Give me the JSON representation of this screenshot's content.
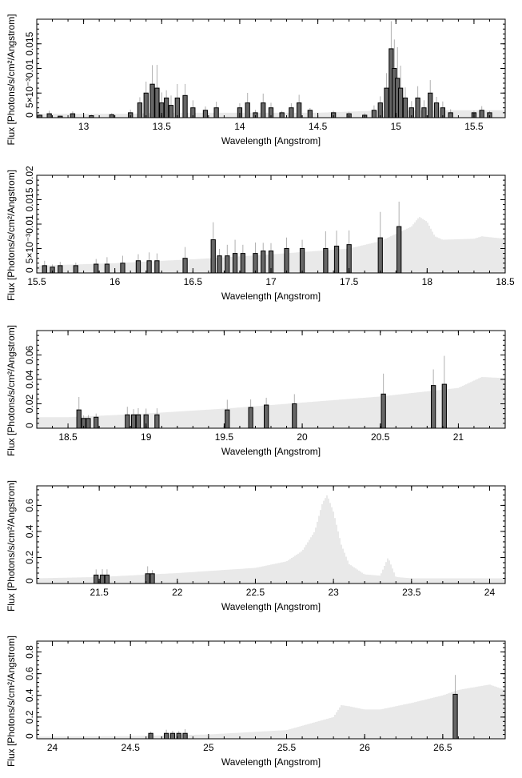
{
  "figure": {
    "colors": {
      "axis": "#000000",
      "errorbar": "#b0b0b0",
      "model": "#c8c8c8",
      "data_step": "#000000",
      "data_fill": "#666666"
    }
  },
  "chart_data": [
    {
      "type": "line",
      "xlabel": "Wavelength [Angstrom]",
      "ylabel": "Flux [Photons/s/cm²/Angstrom]",
      "xlim": [
        12.7,
        15.7
      ],
      "ylim": [
        0,
        0.02
      ],
      "xticks": [
        "13",
        "13.5",
        "14",
        "14.5",
        "15",
        "15.5"
      ],
      "xtick_values": [
        13,
        13.5,
        14,
        14.5,
        15,
        15.5
      ],
      "yticks": [
        "0",
        "5×10⁻³",
        "0.01",
        "0.015"
      ],
      "ytick_values": [
        0,
        0.005,
        0.01,
        0.015
      ],
      "model": {
        "x": [
          12.7,
          13.3,
          13.5,
          14.0,
          14.5,
          14.95,
          15.3,
          15.7
        ],
        "y": [
          0.0008,
          0.0008,
          0.001,
          0.001,
          0.001,
          0.0015,
          0.0015,
          0.0015
        ]
      },
      "data": {
        "x": [
          12.72,
          12.78,
          12.85,
          12.93,
          13.05,
          13.18,
          13.3,
          13.36,
          13.4,
          13.44,
          13.47,
          13.5,
          13.53,
          13.56,
          13.6,
          13.65,
          13.7,
          13.78,
          13.85,
          14.0,
          14.05,
          14.1,
          14.15,
          14.2,
          14.27,
          14.33,
          14.38,
          14.45,
          14.6,
          14.7,
          14.8,
          14.86,
          14.9,
          14.94,
          14.97,
          14.99,
          15.01,
          15.03,
          15.06,
          15.1,
          15.14,
          15.18,
          15.22,
          15.26,
          15.3,
          15.35,
          15.5,
          15.55,
          15.6
        ],
        "y": [
          0.0005,
          0.0008,
          0.0003,
          0.0008,
          0.0004,
          0.0006,
          0.001,
          0.003,
          0.005,
          0.0068,
          0.006,
          0.003,
          0.004,
          0.0025,
          0.004,
          0.0045,
          0.002,
          0.0015,
          0.002,
          0.002,
          0.003,
          0.001,
          0.003,
          0.002,
          0.001,
          0.002,
          0.003,
          0.0015,
          0.001,
          0.0008,
          0.0005,
          0.0015,
          0.003,
          0.006,
          0.014,
          0.01,
          0.008,
          0.006,
          0.004,
          0.002,
          0.004,
          0.002,
          0.005,
          0.003,
          0.002,
          0.001,
          0.001,
          0.0015,
          0.001
        ]
      }
    },
    {
      "type": "line",
      "xlabel": "Wavelength [Angstrom]",
      "ylabel": "Flux [Photons/s/cm²/Angstrom]",
      "xlim": [
        15.5,
        18.5
      ],
      "ylim": [
        0,
        0.02
      ],
      "xticks": [
        "15.5",
        "16",
        "16.5",
        "17",
        "17.5",
        "18",
        "18.5"
      ],
      "xtick_values": [
        15.5,
        16,
        16.5,
        17,
        17.5,
        18,
        18.5
      ],
      "yticks": [
        "0",
        "5×10⁻³",
        "0.01",
        "0.015",
        "0.02"
      ],
      "ytick_values": [
        0,
        0.005,
        0.01,
        0.015,
        0.02
      ],
      "model": {
        "x": [
          15.5,
          16.0,
          16.5,
          17.0,
          17.5,
          17.7,
          17.9,
          17.95,
          18.0,
          18.05,
          18.1,
          18.3,
          18.35,
          18.5
        ],
        "y": [
          0.0015,
          0.002,
          0.0028,
          0.0038,
          0.005,
          0.0065,
          0.0095,
          0.0115,
          0.0105,
          0.0075,
          0.0068,
          0.007,
          0.0075,
          0.007
        ]
      },
      "data": {
        "x": [
          15.55,
          15.6,
          15.65,
          15.75,
          15.88,
          15.95,
          16.05,
          16.15,
          16.22,
          16.27,
          16.45,
          16.63,
          16.67,
          16.72,
          16.77,
          16.82,
          16.9,
          16.95,
          17.0,
          17.1,
          17.2,
          17.35,
          17.42,
          17.5,
          17.7,
          17.82
        ],
        "y": [
          0.0015,
          0.0012,
          0.0015,
          0.0015,
          0.0018,
          0.0018,
          0.002,
          0.0025,
          0.0025,
          0.0025,
          0.003,
          0.0068,
          0.0035,
          0.0035,
          0.004,
          0.004,
          0.004,
          0.0045,
          0.0045,
          0.005,
          0.005,
          0.005,
          0.0055,
          0.0058,
          0.0072,
          0.0095
        ]
      }
    },
    {
      "type": "line",
      "xlabel": "Wavelength [Angstrom]",
      "ylabel": "Flux [Photons/s/cm²/Angstrom]",
      "xlim": [
        18.3,
        21.3
      ],
      "ylim": [
        0,
        0.08
      ],
      "xticks": [
        "18.5",
        "19",
        "19.5",
        "20",
        "20.5",
        "21"
      ],
      "xtick_values": [
        18.5,
        19,
        19.5,
        20,
        20.5,
        21
      ],
      "yticks": [
        "0",
        "0.02",
        "0.04",
        "0.06"
      ],
      "ytick_values": [
        0,
        0.02,
        0.04,
        0.06
      ],
      "model": {
        "x": [
          18.3,
          18.5,
          19.0,
          19.5,
          20.0,
          20.5,
          21.0,
          21.15,
          21.3
        ],
        "y": [
          0.009,
          0.009,
          0.012,
          0.016,
          0.021,
          0.026,
          0.033,
          0.042,
          0.041
        ]
      },
      "data": {
        "x": [
          18.57,
          18.6,
          18.63,
          18.68,
          18.88,
          18.92,
          18.95,
          19.0,
          19.07,
          19.52,
          19.67,
          19.77,
          19.95,
          20.52,
          20.84,
          20.91
        ],
        "y": [
          0.015,
          0.008,
          0.008,
          0.009,
          0.011,
          0.011,
          0.011,
          0.011,
          0.011,
          0.015,
          0.017,
          0.019,
          0.02,
          0.028,
          0.035,
          0.036
        ]
      }
    },
    {
      "type": "line",
      "xlabel": "Wavelength [Angstrom]",
      "ylabel": "Flux [Photons/s/cm²/Angstrom]",
      "xlim": [
        21.1,
        24.1
      ],
      "ylim": [
        0,
        0.75
      ],
      "xticks": [
        "21.5",
        "22",
        "22.5",
        "23",
        "23.5",
        "24"
      ],
      "xtick_values": [
        21.5,
        22,
        22.5,
        23,
        23.5,
        24
      ],
      "yticks": [
        "0",
        "0.2",
        "0.4",
        "0.6"
      ],
      "ytick_values": [
        0,
        0.2,
        0.4,
        0.6
      ],
      "model": {
        "x": [
          21.1,
          21.5,
          22.0,
          22.5,
          22.7,
          22.8,
          22.88,
          22.93,
          22.96,
          23.0,
          23.05,
          23.1,
          23.2,
          23.3,
          23.35,
          23.4,
          23.5,
          24.1
        ],
        "y": [
          0.04,
          0.05,
          0.08,
          0.12,
          0.17,
          0.25,
          0.4,
          0.62,
          0.68,
          0.55,
          0.3,
          0.15,
          0.07,
          0.06,
          0.2,
          0.05,
          0.04,
          0.04
        ]
      },
      "data": {
        "x": [
          21.48,
          21.52,
          21.55,
          21.81,
          21.84
        ],
        "y": [
          0.065,
          0.065,
          0.065,
          0.075,
          0.075
        ]
      }
    },
    {
      "type": "line",
      "xlabel": "Wavelength [Angstrom]",
      "ylabel": "Flux [Photons/s/cm²/Angstrom]",
      "xlim": [
        23.9,
        26.9
      ],
      "ylim": [
        0,
        0.9
      ],
      "xticks": [
        "24",
        "24.5",
        "25",
        "25.5",
        "26",
        "26.5"
      ],
      "xtick_values": [
        24,
        24.5,
        25,
        25.5,
        26,
        26.5
      ],
      "yticks": [
        "0",
        "0.2",
        "0.4",
        "0.6",
        "0.8"
      ],
      "ytick_values": [
        0,
        0.2,
        0.4,
        0.6,
        0.8
      ],
      "model": {
        "x": [
          23.9,
          24.5,
          25.0,
          25.5,
          25.8,
          25.85,
          25.9,
          26.0,
          26.1,
          26.3,
          26.5,
          26.6,
          26.8,
          26.9
        ],
        "y": [
          0.02,
          0.025,
          0.04,
          0.08,
          0.2,
          0.31,
          0.3,
          0.27,
          0.27,
          0.33,
          0.4,
          0.45,
          0.5,
          0.45
        ]
      },
      "data": {
        "x": [
          24.63,
          24.73,
          24.77,
          24.81,
          24.85,
          26.58
        ],
        "y": [
          0.05,
          0.05,
          0.05,
          0.05,
          0.05,
          0.41
        ]
      }
    }
  ]
}
